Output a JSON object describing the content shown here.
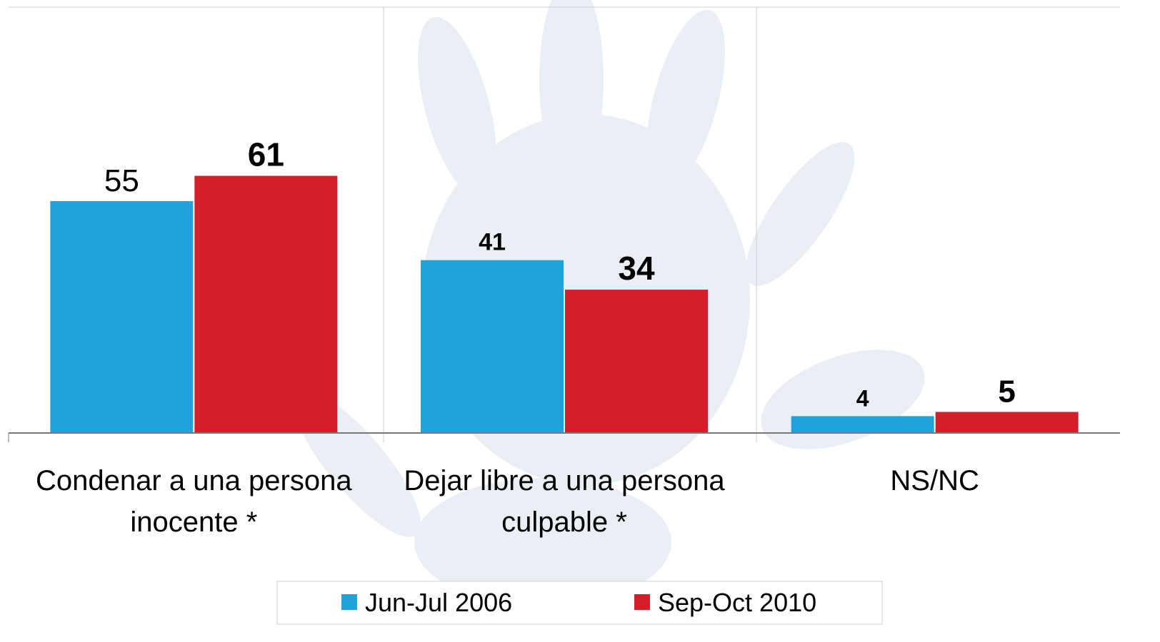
{
  "chart_data": {
    "type": "bar",
    "categories": [
      "Condenar a una persona inocente *",
      "Dejar libre a una persona culpable *",
      "NS/NC"
    ],
    "series": [
      {
        "name": "Jun-Jul 2006",
        "color": "#21a2db",
        "values": [
          55,
          41,
          4
        ]
      },
      {
        "name": "Sep-Oct 2010",
        "color": "#d21f2a",
        "values": [
          61,
          34,
          5
        ]
      }
    ],
    "ylim": [
      0,
      100
    ]
  }
}
